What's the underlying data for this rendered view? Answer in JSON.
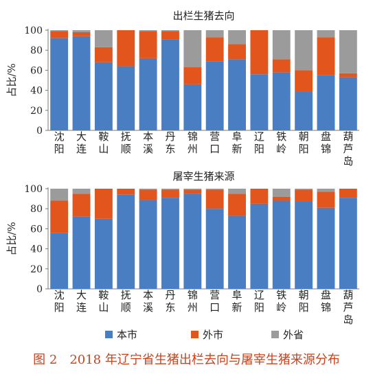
{
  "figure": {
    "caption": "图 2　2018 年辽宁省生猪出栏去向与屠宰生猪来源分布"
  },
  "legend": {
    "items": [
      {
        "label": "本市",
        "color": "#4a7ec2"
      },
      {
        "label": "外市",
        "color": "#e2561e"
      },
      {
        "label": "外省",
        "color": "#9b9b9b"
      }
    ]
  },
  "chart_data": [
    {
      "type": "bar",
      "stacked": true,
      "title": "出栏生猪去向",
      "ylabel": "占比/%",
      "xlabel": "",
      "ylim": [
        0,
        100
      ],
      "yticks": [
        0,
        20,
        40,
        60,
        80,
        100
      ],
      "categories": [
        "沈阳",
        "大连",
        "鞍山",
        "抚顺",
        "本溪",
        "丹东",
        "锦州",
        "营口",
        "阜新",
        "辽阳",
        "铁岭",
        "朝阳",
        "盘锦",
        "葫芦岛"
      ],
      "series": [
        {
          "name": "本市",
          "color": "#4a7ec2",
          "values": [
            92,
            94,
            68,
            64,
            72,
            91,
            46,
            69,
            71,
            56,
            58,
            39,
            55,
            53
          ]
        },
        {
          "name": "外市",
          "color": "#e2561e",
          "values": [
            7,
            4,
            15,
            36,
            27,
            8,
            17,
            24,
            15,
            44,
            13,
            21,
            38,
            4
          ]
        },
        {
          "name": "外省",
          "color": "#9b9b9b",
          "values": [
            1,
            2,
            17,
            0,
            1,
            1,
            37,
            7,
            14,
            0,
            29,
            40,
            7,
            43
          ]
        }
      ],
      "grid": false,
      "legend": "bottom"
    },
    {
      "type": "bar",
      "stacked": true,
      "title": "屠宰生猪来源",
      "ylabel": "占比/%",
      "xlabel": "",
      "ylim": [
        0,
        100
      ],
      "yticks": [
        0,
        20,
        40,
        60,
        80,
        100
      ],
      "categories": [
        "沈阳",
        "大连",
        "鞍山",
        "抚顺",
        "本溪",
        "丹东",
        "锦州",
        "营口",
        "阜新",
        "辽阳",
        "铁岭",
        "朝阳",
        "盘锦",
        "葫芦岛"
      ],
      "series": [
        {
          "name": "本市",
          "color": "#4a7ec2",
          "values": [
            56,
            72,
            70,
            94,
            89,
            91,
            95,
            80,
            73,
            85,
            88,
            87,
            81,
            91
          ]
        },
        {
          "name": "外市",
          "color": "#e2561e",
          "values": [
            32,
            23,
            30,
            6,
            10,
            8,
            4,
            19,
            22,
            15,
            4,
            12,
            16,
            9
          ]
        },
        {
          "name": "外省",
          "color": "#9b9b9b",
          "values": [
            12,
            5,
            0,
            0,
            1,
            1,
            1,
            1,
            5,
            0,
            8,
            1,
            3,
            0
          ]
        }
      ],
      "grid": false,
      "legend": "bottom"
    }
  ]
}
